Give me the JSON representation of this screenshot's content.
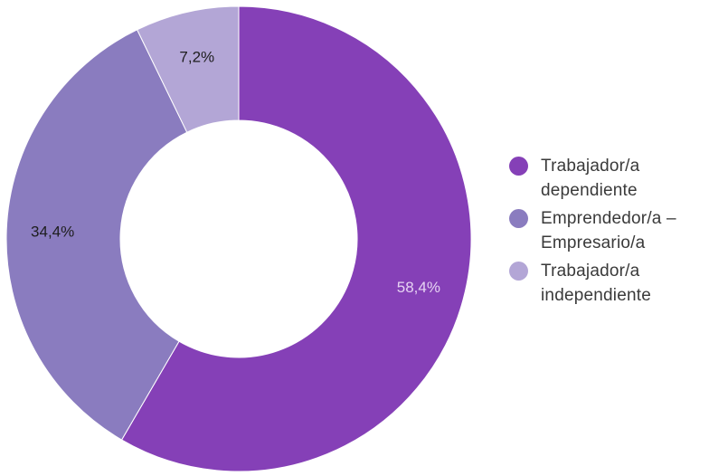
{
  "chart_data": {
    "type": "pie",
    "variant": "donut",
    "title": "",
    "slices": [
      {
        "name": "Trabajador/a dependiente",
        "value": 58.4,
        "label": "58,4%",
        "color": "#8540b7",
        "label_color": "#e6d3f3"
      },
      {
        "name": "Emprendedor/a – Empresario/a",
        "value": 34.4,
        "label": "34,4%",
        "color": "#8a7cbf",
        "label_color": "#1e1e1e"
      },
      {
        "name": "Trabajador/a independiente",
        "value": 7.2,
        "label": "7,2%",
        "color": "#b3a6d6",
        "label_color": "#1e1e1e"
      }
    ],
    "legend": {
      "position": "right",
      "items": [
        {
          "line1": "Trabajador/a",
          "line2": "dependiente"
        },
        {
          "line1": "Emprendedor/a –",
          "line2": "Empresario/a"
        },
        {
          "line1": "Trabajador/a",
          "line2": "independiente"
        }
      ]
    }
  }
}
